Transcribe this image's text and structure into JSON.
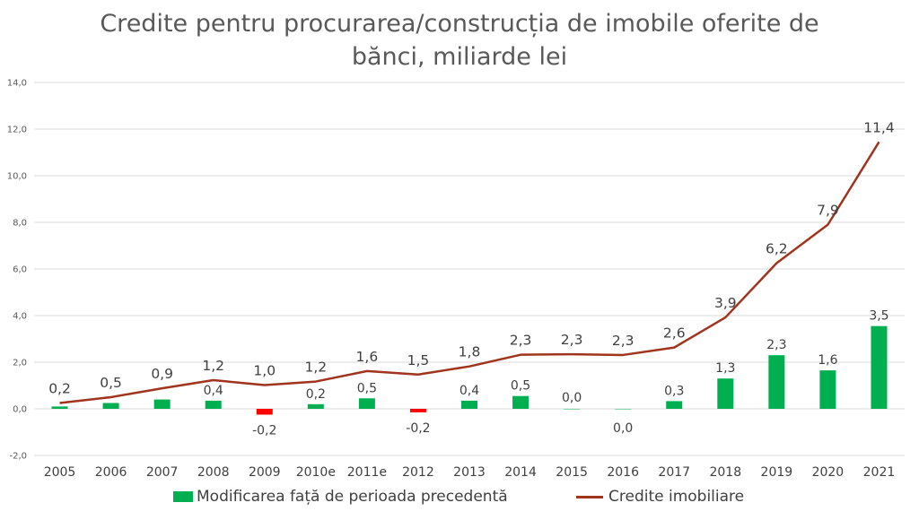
{
  "colors": {
    "bar_positive": "#00b050",
    "bar_negative": "#ff0000",
    "line": "#a0341c",
    "grid": "#d9d9d9",
    "text": "#595959"
  },
  "chart_data": {
    "type": "bar+line",
    "title_line1": "Credite pentru procurarea/construcția de imobile oferite de",
    "title_line2": "bănci, miliarde lei",
    "categories": [
      "2005",
      "2006",
      "2007",
      "2008",
      "2009",
      "2010e",
      "2011e",
      "2012",
      "2013",
      "2014",
      "2015",
      "2016",
      "2017",
      "2018",
      "2019",
      "2020",
      "2021"
    ],
    "y_ticks": [
      "-2,0",
      "0,0",
      "2,0",
      "4,0",
      "6,0",
      "8,0",
      "10,0",
      "12,0",
      "14,0"
    ],
    "ylim": [
      -2,
      14
    ],
    "grid": true,
    "legend_position": "bottom",
    "series": [
      {
        "name": "Modificarea față de perioada precedentă",
        "type": "bar",
        "values": [
          0.1,
          0.25,
          0.4,
          0.35,
          -0.25,
          0.2,
          0.45,
          -0.15,
          0.35,
          0.55,
          0.0,
          0.0,
          0.33,
          1.3,
          2.3,
          1.65,
          3.55
        ],
        "labels": [
          "",
          "",
          "",
          "0,4",
          "-0,2",
          "0,2",
          "0,5",
          "-0,2",
          "0,4",
          "0,5",
          "0,0",
          "0,0",
          "0,3",
          "1,3",
          "2,3",
          "1,6",
          "3,5"
        ]
      },
      {
        "name": "Credite imobiliare",
        "type": "line",
        "values": [
          0.25,
          0.5,
          0.88,
          1.23,
          1.02,
          1.17,
          1.62,
          1.47,
          1.82,
          2.32,
          2.34,
          2.31,
          2.63,
          3.92,
          6.25,
          7.9,
          11.45
        ],
        "labels": [
          "0,2",
          "0,5",
          "0,9",
          "1,2",
          "1,0",
          "1,2",
          "1,6",
          "1,5",
          "1,8",
          "2,3",
          "2,3",
          "2,3",
          "2,6",
          "3,9",
          "6,2",
          "7,9",
          "11,4"
        ]
      }
    ]
  }
}
